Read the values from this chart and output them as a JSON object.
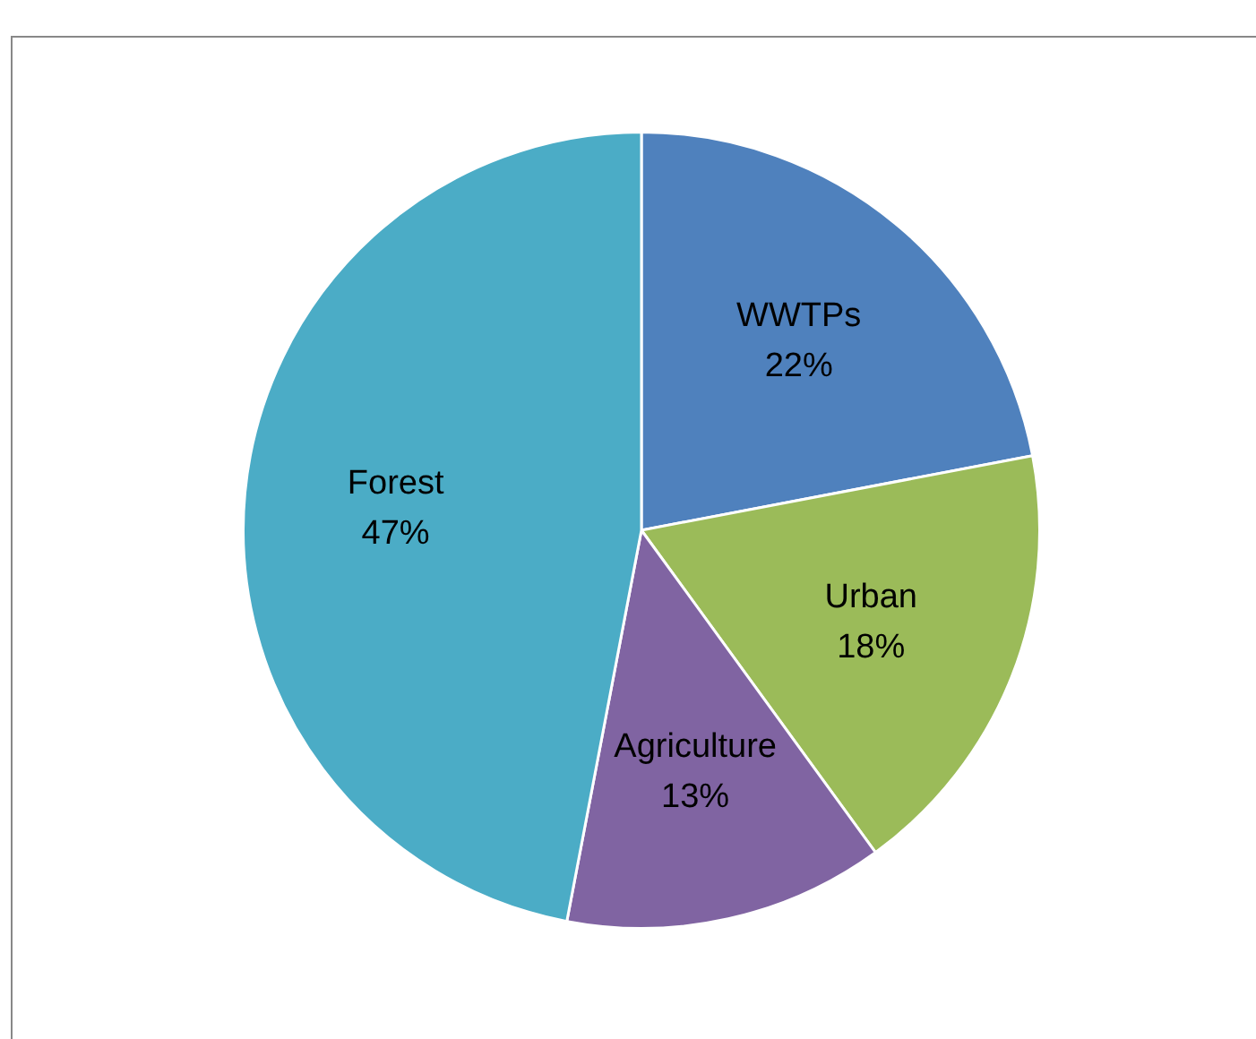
{
  "chart_data": {
    "type": "pie",
    "categories": [
      "WWTPs",
      "Urban",
      "Agriculture",
      "Forest"
    ],
    "values": [
      22,
      18,
      13,
      47
    ],
    "colors": [
      "#4f81bd",
      "#9bbb59",
      "#8064a2",
      "#4bacc6"
    ],
    "value_labels": [
      "22%",
      "18%",
      "13%",
      "47%"
    ]
  }
}
